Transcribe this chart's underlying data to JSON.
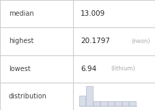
{
  "rows": [
    {
      "label": "median",
      "value": "13.009",
      "annotation": ""
    },
    {
      "label": "highest",
      "value": "20.1797",
      "annotation": "neon"
    },
    {
      "label": "lowest",
      "value": "6.94",
      "annotation": "lithium"
    },
    {
      "label": "distribution",
      "value": "",
      "annotation": ""
    }
  ],
  "hist_bars": [
    2,
    4,
    1,
    1,
    1,
    1,
    1,
    1
  ],
  "hist_bar_color": "#d8dde8",
  "hist_bar_edge_color": "#b0b8c8",
  "table_line_color": "#cccccc",
  "text_color_label": "#444444",
  "text_color_value": "#222222",
  "text_color_annotation": "#aaaaaa",
  "background_color": "#ffffff",
  "col_split": 0.47
}
